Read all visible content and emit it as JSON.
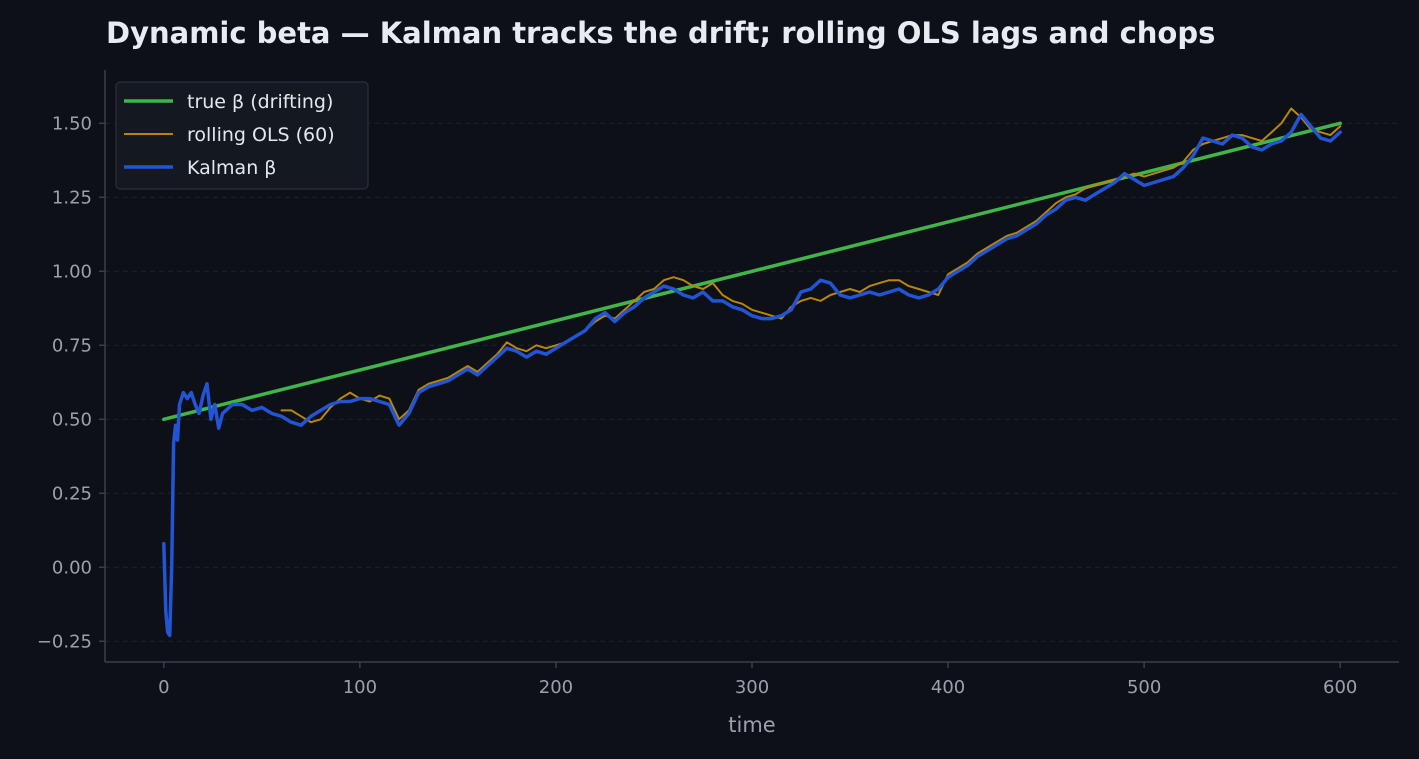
{
  "chart_data": {
    "type": "line",
    "title": "Dynamic beta — Kalman tracks the drift; rolling OLS lags and chops",
    "xlabel": "time",
    "ylabel": "",
    "xlim": [
      -30,
      630
    ],
    "ylim": [
      -0.32,
      1.68
    ],
    "x_ticks": [
      0,
      100,
      200,
      300,
      400,
      500,
      600
    ],
    "x_tick_labels": [
      "0",
      "100",
      "200",
      "300",
      "400",
      "500",
      "600"
    ],
    "y_ticks": [
      -0.25,
      0,
      0.25,
      0.5,
      0.75,
      1.0,
      1.25,
      1.5
    ],
    "y_tick_labels": [
      "−0.25",
      "0.00",
      "0.25",
      "0.50",
      "0.75",
      "1.00",
      "1.25",
      "1.50"
    ],
    "grid": "horizontal dashed",
    "legend_position": "top-left",
    "colors": {
      "background": "#0d1017",
      "axis": "#3a404b",
      "grid": "#1e232c",
      "tick_text": "#9aa1ad",
      "title_text": "#e8ecf2",
      "legend_bg": "#141820",
      "legend_border": "#2f3540",
      "legend_text": "#e3e7ee"
    },
    "series": [
      {
        "name": "true β (drifting)",
        "color": "#3fb54a",
        "x": [
          0,
          600
        ],
        "y": [
          0.5,
          1.5
        ]
      },
      {
        "name": "rolling OLS (60)",
        "color": "#b8860b",
        "x": [
          60,
          65,
          70,
          75,
          80,
          85,
          90,
          95,
          100,
          105,
          110,
          115,
          120,
          125,
          130,
          135,
          140,
          145,
          150,
          155,
          160,
          165,
          170,
          175,
          180,
          185,
          190,
          195,
          200,
          205,
          210,
          215,
          220,
          225,
          230,
          235,
          240,
          245,
          250,
          255,
          260,
          265,
          270,
          275,
          280,
          285,
          290,
          295,
          300,
          305,
          310,
          315,
          320,
          325,
          330,
          335,
          340,
          345,
          350,
          355,
          360,
          365,
          370,
          375,
          380,
          385,
          390,
          395,
          400,
          405,
          410,
          415,
          420,
          425,
          430,
          435,
          440,
          445,
          450,
          455,
          460,
          465,
          470,
          475,
          480,
          485,
          490,
          495,
          500,
          505,
          510,
          515,
          520,
          525,
          530,
          535,
          540,
          545,
          550,
          555,
          560,
          565,
          570,
          575,
          580,
          585,
          590,
          595,
          600
        ],
        "y": [
          0.53,
          0.53,
          0.51,
          0.49,
          0.5,
          0.54,
          0.57,
          0.59,
          0.57,
          0.56,
          0.58,
          0.57,
          0.5,
          0.53,
          0.6,
          0.62,
          0.63,
          0.64,
          0.66,
          0.68,
          0.66,
          0.69,
          0.72,
          0.76,
          0.74,
          0.73,
          0.75,
          0.74,
          0.75,
          0.76,
          0.78,
          0.8,
          0.83,
          0.85,
          0.84,
          0.87,
          0.9,
          0.93,
          0.94,
          0.97,
          0.98,
          0.97,
          0.95,
          0.94,
          0.96,
          0.92,
          0.9,
          0.89,
          0.87,
          0.86,
          0.85,
          0.84,
          0.88,
          0.9,
          0.91,
          0.9,
          0.92,
          0.93,
          0.94,
          0.93,
          0.95,
          0.96,
          0.97,
          0.97,
          0.95,
          0.94,
          0.93,
          0.92,
          0.99,
          1.01,
          1.03,
          1.06,
          1.08,
          1.1,
          1.12,
          1.13,
          1.15,
          1.17,
          1.2,
          1.23,
          1.25,
          1.26,
          1.28,
          1.29,
          1.3,
          1.31,
          1.32,
          1.33,
          1.32,
          1.33,
          1.34,
          1.35,
          1.37,
          1.41,
          1.43,
          1.44,
          1.45,
          1.46,
          1.46,
          1.45,
          1.44,
          1.47,
          1.5,
          1.55,
          1.52,
          1.48,
          1.47,
          1.46,
          1.49
        ]
      },
      {
        "name": "Kalman β",
        "color": "#2155d6",
        "x": [
          0,
          1,
          2,
          3,
          4,
          5,
          6,
          7,
          8,
          10,
          12,
          14,
          16,
          18,
          20,
          22,
          24,
          26,
          28,
          30,
          35,
          40,
          45,
          50,
          55,
          60,
          65,
          70,
          75,
          80,
          85,
          90,
          95,
          100,
          105,
          110,
          115,
          120,
          125,
          130,
          135,
          140,
          145,
          150,
          155,
          160,
          165,
          170,
          175,
          180,
          185,
          190,
          195,
          200,
          205,
          210,
          215,
          220,
          225,
          230,
          235,
          240,
          245,
          250,
          255,
          260,
          265,
          270,
          275,
          280,
          285,
          290,
          295,
          300,
          305,
          310,
          315,
          320,
          325,
          330,
          335,
          340,
          345,
          350,
          355,
          360,
          365,
          370,
          375,
          380,
          385,
          390,
          395,
          400,
          405,
          410,
          415,
          420,
          425,
          430,
          435,
          440,
          445,
          450,
          455,
          460,
          465,
          470,
          475,
          480,
          485,
          490,
          495,
          500,
          505,
          510,
          515,
          520,
          525,
          530,
          535,
          540,
          545,
          550,
          555,
          560,
          565,
          570,
          575,
          580,
          585,
          590,
          595,
          600
        ],
        "y": [
          0.08,
          -0.15,
          -0.22,
          -0.23,
          0.0,
          0.42,
          0.48,
          0.43,
          0.55,
          0.59,
          0.57,
          0.59,
          0.55,
          0.52,
          0.58,
          0.62,
          0.5,
          0.55,
          0.47,
          0.52,
          0.55,
          0.55,
          0.53,
          0.54,
          0.52,
          0.51,
          0.49,
          0.48,
          0.51,
          0.53,
          0.55,
          0.56,
          0.56,
          0.57,
          0.57,
          0.56,
          0.55,
          0.48,
          0.52,
          0.59,
          0.61,
          0.62,
          0.63,
          0.65,
          0.67,
          0.65,
          0.68,
          0.71,
          0.74,
          0.73,
          0.71,
          0.73,
          0.72,
          0.74,
          0.76,
          0.78,
          0.8,
          0.84,
          0.86,
          0.83,
          0.86,
          0.88,
          0.91,
          0.93,
          0.95,
          0.94,
          0.92,
          0.91,
          0.93,
          0.9,
          0.9,
          0.88,
          0.87,
          0.85,
          0.84,
          0.84,
          0.85,
          0.87,
          0.93,
          0.94,
          0.97,
          0.96,
          0.92,
          0.91,
          0.92,
          0.93,
          0.92,
          0.93,
          0.94,
          0.92,
          0.91,
          0.92,
          0.94,
          0.98,
          1.0,
          1.02,
          1.05,
          1.07,
          1.09,
          1.11,
          1.12,
          1.14,
          1.16,
          1.19,
          1.21,
          1.24,
          1.25,
          1.24,
          1.26,
          1.28,
          1.3,
          1.33,
          1.31,
          1.29,
          1.3,
          1.31,
          1.32,
          1.35,
          1.39,
          1.45,
          1.44,
          1.43,
          1.46,
          1.45,
          1.42,
          1.41,
          1.43,
          1.44,
          1.47,
          1.53,
          1.49,
          1.45,
          1.44,
          1.47
        ]
      }
    ]
  }
}
